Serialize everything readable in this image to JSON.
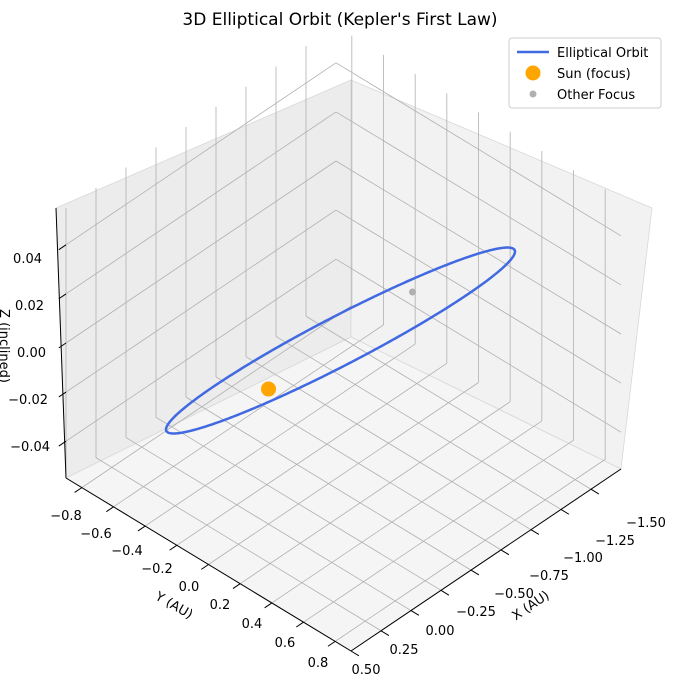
{
  "chart_data": {
    "type": "line",
    "projection": "3d",
    "title": "3D Elliptical Orbit (Kepler's First Law)",
    "xlabel": "X (AU)",
    "ylabel": "Y (AU)",
    "zlabel": "Z (inclined)",
    "x_ticks": [
      "−1.50",
      "−1.25",
      "−1.00",
      "−0.75",
      "−0.50",
      "−0.25",
      "0.00",
      "0.25",
      "0.50"
    ],
    "y_ticks": [
      "−0.8",
      "−0.6",
      "−0.4",
      "−0.2",
      "0.0",
      "0.2",
      "0.4",
      "0.6",
      "0.8"
    ],
    "z_ticks": [
      "0.04",
      "0.02",
      "0.00",
      "−0.02",
      "−0.04"
    ],
    "xlim": [
      -1.75,
      0.5
    ],
    "ylim": [
      -0.9,
      0.9
    ],
    "zlim": [
      -0.055,
      0.055
    ],
    "grid": true,
    "legend_position": "top-right",
    "orbit": {
      "semi_major_axis": 1.0,
      "eccentricity": 0.6,
      "semi_minor_axis": 0.8,
      "center_x": -0.6,
      "tilt_z_amplitude": 0.05,
      "color": "#4169e1"
    },
    "series": [
      {
        "name": "Elliptical Orbit",
        "kind": "line",
        "color": "#4169e1"
      },
      {
        "name": "Sun (focus)",
        "kind": "point",
        "x": 0.0,
        "y": 0.0,
        "z": 0.0,
        "color": "#ffa500"
      },
      {
        "name": "Other Focus",
        "kind": "point",
        "x": -1.2,
        "y": 0.0,
        "z": 0.0,
        "color": "#b0b0b0"
      }
    ]
  }
}
